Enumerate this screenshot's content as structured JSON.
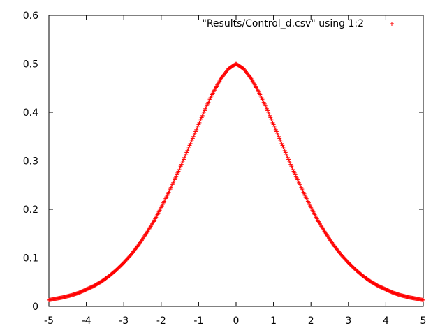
{
  "chart_data": {
    "type": "scatter",
    "title": "",
    "xlabel": "",
    "ylabel": "",
    "xlim": [
      -5,
      5
    ],
    "ylim": [
      0,
      0.6
    ],
    "x_ticks": [
      "-5",
      "-4",
      "-3",
      "-2",
      "-1",
      "0",
      "1",
      "2",
      "3",
      "4",
      "5"
    ],
    "y_ticks": [
      "0",
      "0.1",
      "0.2",
      "0.3",
      "0.4",
      "0.5",
      "0.6"
    ],
    "grid": false,
    "legend_position": "top-right",
    "series": [
      {
        "name": "\"Results/Control_d.csv\" using 1:2",
        "color": "#ff0000",
        "marker": "plus",
        "x": [
          -5.0,
          -4.8,
          -4.6,
          -4.4,
          -4.2,
          -4.0,
          -3.8,
          -3.6,
          -3.4,
          -3.2,
          -3.0,
          -2.8,
          -2.6,
          -2.4,
          -2.2,
          -2.0,
          -1.8,
          -1.6,
          -1.4,
          -1.2,
          -1.0,
          -0.8,
          -0.6,
          -0.4,
          -0.2,
          0.0,
          0.2,
          0.4,
          0.6,
          0.8,
          1.0,
          1.2,
          1.4,
          1.6,
          1.8,
          2.0,
          2.2,
          2.4,
          2.6,
          2.8,
          3.0,
          3.2,
          3.4,
          3.6,
          3.8,
          4.0,
          4.2,
          4.4,
          4.6,
          4.8,
          5.0
        ],
        "y": [
          0.013,
          0.016,
          0.019,
          0.023,
          0.028,
          0.035,
          0.042,
          0.051,
          0.062,
          0.075,
          0.09,
          0.107,
          0.127,
          0.15,
          0.175,
          0.204,
          0.235,
          0.268,
          0.303,
          0.339,
          0.375,
          0.411,
          0.443,
          0.47,
          0.49,
          0.5,
          0.49,
          0.47,
          0.443,
          0.411,
          0.375,
          0.339,
          0.303,
          0.268,
          0.235,
          0.204,
          0.175,
          0.15,
          0.127,
          0.107,
          0.09,
          0.075,
          0.062,
          0.051,
          0.042,
          0.035,
          0.028,
          0.023,
          0.019,
          0.016,
          0.013
        ]
      }
    ]
  }
}
